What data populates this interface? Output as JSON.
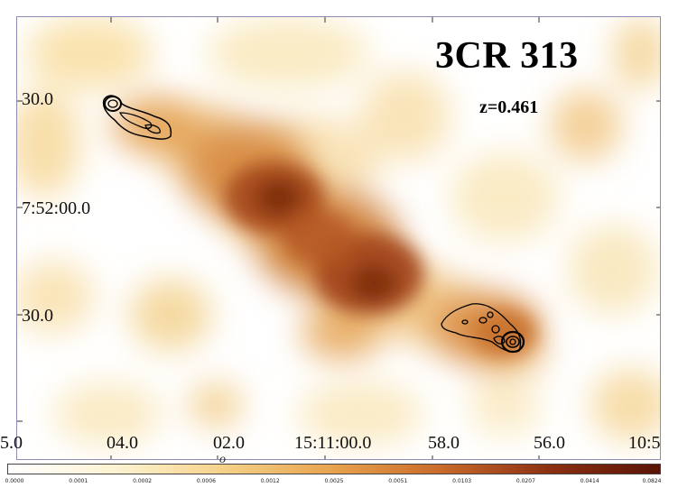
{
  "title": "3CR 313",
  "redshift": "z=0.461",
  "dec_labels": [
    "30.0",
    "7:52:00.0",
    "30.0"
  ],
  "ra_labels": [
    "5.0",
    "04.0",
    "02.0",
    "15:11:00.0",
    "58.0",
    "56.0",
    "10:5"
  ],
  "colorbar_labels": [
    "0.0000",
    "0.0001",
    "0.0002",
    "0.0006",
    "0.0012",
    "0.0025",
    "0.0051",
    "0.0103",
    "0.0207",
    "0.0414",
    "0.0824"
  ],
  "colorbar_colors": [
    "#ffffff",
    "#fdf3d2",
    "#f5d088",
    "#e7a24e",
    "#c8692a",
    "#8a2f12",
    "#5a1406"
  ],
  "glyph": "o"
}
